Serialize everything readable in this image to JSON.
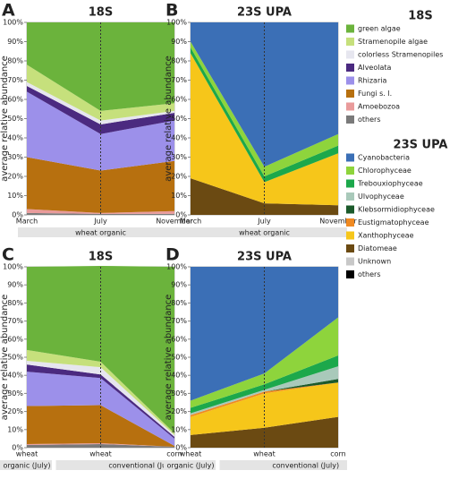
{
  "chart_data": [
    {
      "type": "stacked-area",
      "panel": "A",
      "title": "18S",
      "ylabel": "average relative abundance",
      "categories": [
        "March",
        "July",
        "November"
      ],
      "groups": [
        "wheat organic"
      ],
      "ylim": [
        0,
        100
      ],
      "yticks": [
        {
          "value": 0,
          "label": "0%"
        },
        {
          "value": 10,
          "label": "10%"
        },
        {
          "value": 20,
          "label": "20%"
        },
        {
          "value": 30,
          "label": "30%"
        },
        {
          "value": 40,
          "label": "40%"
        },
        {
          "value": 50,
          "label": "50%"
        },
        {
          "value": 60,
          "label": "60%"
        },
        {
          "value": 70,
          "label": "70%"
        },
        {
          "value": 80,
          "label": "80%"
        },
        {
          "value": 90,
          "label": "90%"
        },
        {
          "value": 100,
          "label": "100%"
        }
      ],
      "series": [
        {
          "name": "green algae",
          "color": "#6bb33c",
          "values": [
            22,
            46,
            42
          ]
        },
        {
          "name": "Stramenopile algae",
          "color": "#c6e07c",
          "values": [
            9,
            5,
            4
          ]
        },
        {
          "name": "colorless Stramenopiles",
          "color": "#e6e6ef",
          "values": [
            2,
            2,
            1
          ]
        },
        {
          "name": "Alveolata",
          "color": "#4b2a80",
          "values": [
            3,
            5,
            4
          ]
        },
        {
          "name": "Rhizaria",
          "color": "#9c90ea",
          "values": [
            34,
            19,
            21
          ]
        },
        {
          "name": "Fungi s. l.",
          "color": "#b7700f",
          "values": [
            27,
            22,
            26
          ]
        },
        {
          "name": "Amoebozoa",
          "color": "#e99b9b",
          "values": [
            2,
            0.5,
            1.5
          ]
        },
        {
          "name": "others",
          "color": "#7a7a7a",
          "values": [
            1,
            0.5,
            0.5
          ]
        }
      ]
    },
    {
      "type": "stacked-area",
      "panel": "B",
      "title": "23S UPA",
      "ylabel": "average relative abundance",
      "categories": [
        "March",
        "July",
        "November"
      ],
      "groups": [
        "wheat organic"
      ],
      "ylim": [
        0,
        100
      ],
      "yticks": [
        {
          "value": 0,
          "label": "0%"
        },
        {
          "value": 10,
          "label": "10%"
        },
        {
          "value": 20,
          "label": "20%"
        },
        {
          "value": 30,
          "label": "30%"
        },
        {
          "value": 40,
          "label": "40%"
        },
        {
          "value": 50,
          "label": "50%"
        },
        {
          "value": 60,
          "label": "60%"
        },
        {
          "value": 70,
          "label": "70%"
        },
        {
          "value": 80,
          "label": "80%"
        },
        {
          "value": 90,
          "label": "90%"
        },
        {
          "value": 100,
          "label": "100%"
        }
      ],
      "series": [
        {
          "name": "Cyanobacteria",
          "color": "#3b6fb6",
          "values": [
            10,
            75,
            58
          ]
        },
        {
          "name": "Chlorophyceae",
          "color": "#8ed43c",
          "values": [
            3,
            5,
            6
          ]
        },
        {
          "name": "Trebouxiophyceae",
          "color": "#1ca84b",
          "values": [
            3,
            3,
            4
          ]
        },
        {
          "name": "Ulvophyceae",
          "color": "#a9c9ba",
          "values": [
            0,
            0,
            0
          ]
        },
        {
          "name": "Klebsormidiophyceae",
          "color": "#1b5a2b",
          "values": [
            0,
            0,
            0
          ]
        },
        {
          "name": "Eustigmatophyceae",
          "color": "#f08a22",
          "values": [
            0,
            0,
            0
          ]
        },
        {
          "name": "Xanthophyceae",
          "color": "#f6c61a",
          "values": [
            65,
            11,
            27
          ]
        },
        {
          "name": "Diatomeae",
          "color": "#6b4a12",
          "values": [
            19,
            6,
            5
          ]
        },
        {
          "name": "Unknown",
          "color": "#c8c8c8",
          "values": [
            0,
            0,
            0
          ]
        },
        {
          "name": "others",
          "color": "#000000",
          "values": [
            0,
            0,
            0
          ]
        }
      ]
    },
    {
      "type": "stacked-area",
      "panel": "C",
      "title": "18S",
      "ylabel": "average relative abundance",
      "categories": [
        "wheat",
        "wheat",
        "corn"
      ],
      "groups": [
        "organic (July)",
        "conventional (July)"
      ],
      "ylim": [
        0,
        100
      ],
      "yticks": [
        {
          "value": 0,
          "label": "0%"
        },
        {
          "value": 10,
          "label": "10%"
        },
        {
          "value": 20,
          "label": "20%"
        },
        {
          "value": 30,
          "label": "30%"
        },
        {
          "value": 40,
          "label": "40%"
        },
        {
          "value": 50,
          "label": "50%"
        },
        {
          "value": 60,
          "label": "60%"
        },
        {
          "value": 70,
          "label": "70%"
        },
        {
          "value": 80,
          "label": "80%"
        },
        {
          "value": 90,
          "label": "90%"
        },
        {
          "value": 100,
          "label": "100%"
        }
      ],
      "series": [
        {
          "name": "green algae",
          "color": "#6bb33c",
          "values": [
            46,
            53,
            92
          ]
        },
        {
          "name": "Stramenopile algae",
          "color": "#c6e07c",
          "values": [
            6,
            3,
            1
          ]
        },
        {
          "name": "colorless Stramenopiles",
          "color": "#e6e6ef",
          "values": [
            2,
            4,
            1
          ]
        },
        {
          "name": "Alveolata",
          "color": "#4b2a80",
          "values": [
            4,
            2,
            1
          ]
        },
        {
          "name": "Rhizaria",
          "color": "#9c90ea",
          "values": [
            19,
            15,
            4
          ]
        },
        {
          "name": "Fungi s. l.",
          "color": "#b7700f",
          "values": [
            21,
            21,
            0.5
          ]
        },
        {
          "name": "Amoebozoa",
          "color": "#e99b9b",
          "values": [
            0.5,
            0.5,
            0
          ]
        },
        {
          "name": "others",
          "color": "#7a7a7a",
          "values": [
            1.5,
            2,
            0.5
          ]
        }
      ]
    },
    {
      "type": "stacked-area",
      "panel": "D",
      "title": "23S UPA",
      "ylabel": "average relative abundance",
      "categories": [
        "wheat",
        "wheat",
        "corn"
      ],
      "groups": [
        "organic (July)",
        "conventional (July)"
      ],
      "ylim": [
        0,
        100
      ],
      "yticks": [
        {
          "value": 0,
          "label": "0%"
        },
        {
          "value": 10,
          "label": "10%"
        },
        {
          "value": 20,
          "label": "20%"
        },
        {
          "value": 30,
          "label": "30%"
        },
        {
          "value": 40,
          "label": "40%"
        },
        {
          "value": 50,
          "label": "50%"
        },
        {
          "value": 60,
          "label": "60%"
        },
        {
          "value": 70,
          "label": "70%"
        },
        {
          "value": 80,
          "label": "80%"
        },
        {
          "value": 90,
          "label": "90%"
        },
        {
          "value": 100,
          "label": "100%"
        }
      ],
      "series": [
        {
          "name": "Cyanobacteria",
          "color": "#3b6fb6",
          "values": [
            74,
            59,
            28
          ]
        },
        {
          "name": "Chlorophyceae",
          "color": "#8ed43c",
          "values": [
            4,
            6,
            21
          ]
        },
        {
          "name": "Trebouxiophyceae",
          "color": "#1ca84b",
          "values": [
            3,
            3,
            6
          ]
        },
        {
          "name": "Ulvophyceae",
          "color": "#a9c9ba",
          "values": [
            1,
            1,
            7
          ]
        },
        {
          "name": "Klebsormidiophyceae",
          "color": "#1b5a2b",
          "values": [
            0,
            0,
            2
          ]
        },
        {
          "name": "Eustigmatophyceae",
          "color": "#f08a22",
          "values": [
            1,
            1,
            0
          ]
        },
        {
          "name": "Xanthophyceae",
          "color": "#f6c61a",
          "values": [
            10,
            19,
            19
          ]
        },
        {
          "name": "Diatomeae",
          "color": "#6b4a12",
          "values": [
            7,
            11,
            17
          ]
        },
        {
          "name": "Unknown",
          "color": "#c8c8c8",
          "values": [
            0,
            0,
            0
          ]
        },
        {
          "name": "others",
          "color": "#000000",
          "values": [
            0,
            0,
            0
          ]
        }
      ]
    }
  ],
  "legends": [
    {
      "title": "18S"
    },
    {
      "title": "23S UPA"
    }
  ]
}
